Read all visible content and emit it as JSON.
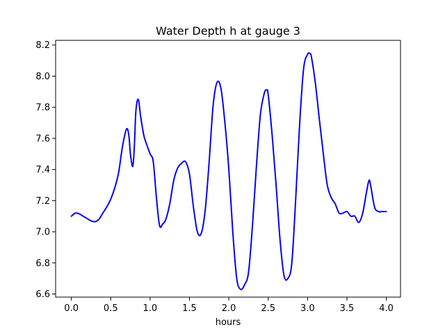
{
  "chart_data": {
    "type": "line",
    "title": "Water Depth h at gauge 3",
    "xlabel": "hours",
    "ylabel": "",
    "xlim": [
      -0.2,
      4.18
    ],
    "ylim": [
      6.58,
      8.23
    ],
    "xticks": [
      0.0,
      0.5,
      1.0,
      1.5,
      2.0,
      2.5,
      3.0,
      3.5,
      4.0
    ],
    "xtick_labels": [
      "0.0",
      "0.5",
      "1.0",
      "1.5",
      "2.0",
      "2.5",
      "3.0",
      "3.5",
      "4.0"
    ],
    "yticks": [
      6.6,
      6.8,
      7.0,
      7.2,
      7.4,
      7.6,
      7.8,
      8.0,
      8.2
    ],
    "ytick_labels": [
      "6.6",
      "6.8",
      "7.0",
      "7.2",
      "7.4",
      "7.6",
      "7.8",
      "8.0",
      "8.2"
    ],
    "grid": false,
    "series": [
      {
        "color": "#0000ff",
        "x": [
          0.0,
          0.05,
          0.1,
          0.15,
          0.2,
          0.25,
          0.3,
          0.35,
          0.4,
          0.45,
          0.5,
          0.55,
          0.6,
          0.65,
          0.7,
          0.73,
          0.75,
          0.78,
          0.8,
          0.82,
          0.85,
          0.88,
          0.92,
          0.95,
          1.0,
          1.04,
          1.08,
          1.12,
          1.16,
          1.2,
          1.25,
          1.3,
          1.35,
          1.4,
          1.45,
          1.5,
          1.55,
          1.6,
          1.65,
          1.7,
          1.75,
          1.8,
          1.85,
          1.9,
          1.95,
          2.0,
          2.05,
          2.1,
          2.15,
          2.2,
          2.25,
          2.3,
          2.35,
          2.4,
          2.45,
          2.48,
          2.5,
          2.55,
          2.6,
          2.65,
          2.7,
          2.75,
          2.8,
          2.85,
          2.9,
          2.95,
          3.0,
          3.03,
          3.05,
          3.1,
          3.15,
          3.2,
          3.25,
          3.3,
          3.35,
          3.4,
          3.45,
          3.5,
          3.55,
          3.6,
          3.65,
          3.7,
          3.75,
          3.78,
          3.8,
          3.85,
          3.9,
          3.95,
          4.0
        ],
        "y": [
          7.1,
          7.12,
          7.115,
          7.1,
          7.085,
          7.07,
          7.065,
          7.08,
          7.12,
          7.16,
          7.21,
          7.28,
          7.38,
          7.55,
          7.66,
          7.62,
          7.5,
          7.42,
          7.55,
          7.78,
          7.85,
          7.74,
          7.62,
          7.57,
          7.5,
          7.45,
          7.22,
          7.04,
          7.05,
          7.08,
          7.18,
          7.33,
          7.41,
          7.44,
          7.45,
          7.37,
          7.16,
          7.0,
          6.99,
          7.14,
          7.45,
          7.81,
          7.96,
          7.92,
          7.7,
          7.4,
          7.0,
          6.7,
          6.63,
          6.66,
          6.74,
          7.04,
          7.42,
          7.75,
          7.89,
          7.91,
          7.88,
          7.62,
          7.3,
          6.95,
          6.72,
          6.7,
          6.8,
          7.22,
          7.7,
          8.05,
          8.14,
          8.145,
          8.12,
          7.95,
          7.72,
          7.5,
          7.3,
          7.22,
          7.18,
          7.12,
          7.12,
          7.13,
          7.1,
          7.1,
          7.06,
          7.12,
          7.26,
          7.33,
          7.3,
          7.16,
          7.13,
          7.13,
          7.13
        ]
      }
    ]
  }
}
